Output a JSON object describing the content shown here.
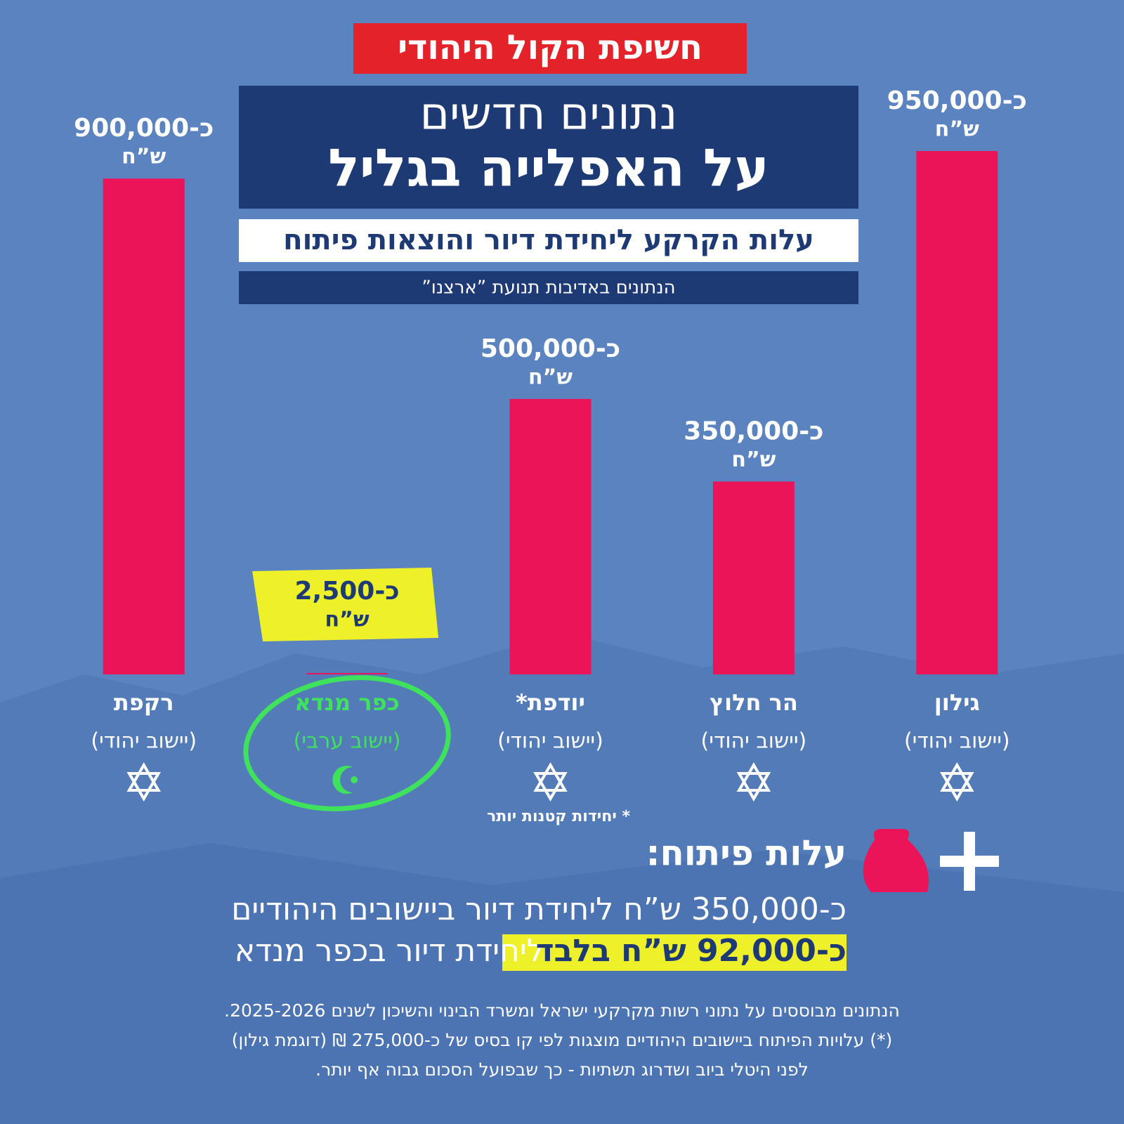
{
  "logo": "חשיפת הקול היהודי",
  "header": {
    "title_line1": "נתונים חדשים",
    "title_line2": "על האפלייה בגליל",
    "subtitle": "עלות הקרקע ליחידת דיור והוצאות פיתוח",
    "source": "הנתונים באדיבות תנועת ”ארצנו”"
  },
  "chart_data": {
    "type": "bar",
    "categories": [
      "רקפת",
      "כפר מנדא",
      "יודפת*",
      "הר חלוץ",
      "גילון"
    ],
    "sublabels": [
      "(יישוב יהודי)",
      "(יישוב ערבי)",
      "(יישוב יהודי)",
      "(יישוב יהודי)",
      "(יישוב יהודי)"
    ],
    "values": [
      900000,
      2500,
      500000,
      350000,
      950000
    ],
    "value_labels": [
      "כ-900,000",
      "כ-2,500",
      "כ-500,000",
      "כ-350,000",
      "כ-950,000"
    ],
    "unit": "ש”ח",
    "color": "#ec1459",
    "highlight_index": 1,
    "highlight_color": "#eef12a",
    "circle_color": "#3fe25c"
  },
  "footnote": "* יחידות קטנות יותר",
  "development": {
    "title": "עלות פיתוח:",
    "line1": "כ-350,000 ש”ח ליחידת דיור ביישובים היהודיים",
    "line2_highlight": "כ-92,000 ש”ח בלבד",
    "line2_rest": "ליחידת דיור בכפר מנדא"
  },
  "notes": [
    "הנתונים מבוססים על נתוני רשות מקרקעי ישראל ומשרד הבינוי והשיכון לשנים 2025-2026.",
    "(*) עלויות הפיתוח ביישובים היהודיים מוצגות לפי קו בסיס של כ-275,000 ₪ (דוגמת גילון)",
    "לפני היטלי ביוב ושדרוג תשתיות - כך שבפועל הסכום גבוה אף יותר."
  ]
}
